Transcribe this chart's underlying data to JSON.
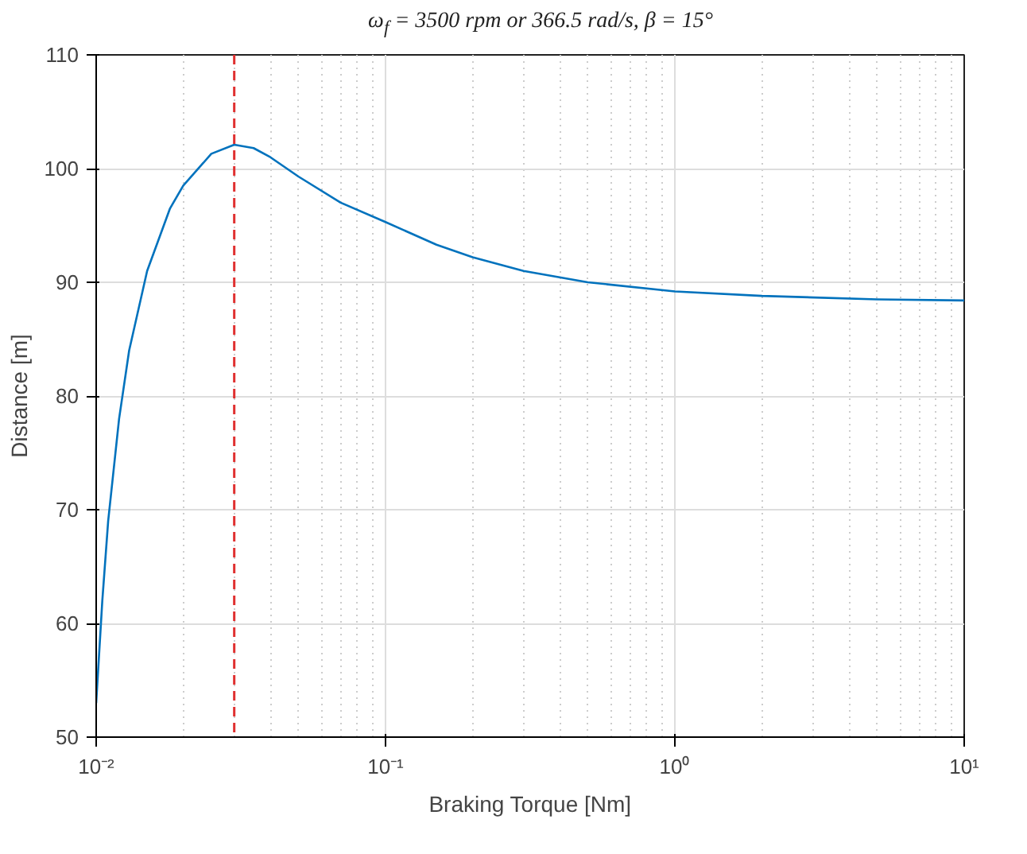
{
  "chart_data": {
    "type": "line",
    "title": "ω$_{f}$ = 3500 rpm or 366.5 rad/s, β = 15°",
    "xlabel": "Braking Torque [Nm]",
    "ylabel": "Distance [m]",
    "log": "x",
    "grid": true,
    "line_style": "solid",
    "xlim": [
      0.01,
      10
    ],
    "ylim": [
      50,
      110
    ],
    "xticks": [
      {
        "value": 0.01,
        "label": "10⁻²"
      },
      {
        "value": 0.1,
        "label": "10⁻¹"
      },
      {
        "value": 1,
        "label": "10⁰"
      },
      {
        "value": 10,
        "label": "10¹"
      }
    ],
    "yticks": [
      50,
      60,
      70,
      80,
      90,
      100,
      110
    ],
    "series": [
      {
        "color": "#0072bd",
        "x": [
          0.01,
          0.0105,
          0.011,
          0.012,
          0.013,
          0.015,
          0.018,
          0.02,
          0.025,
          0.03,
          0.035,
          0.04,
          0.05,
          0.07,
          0.1,
          0.15,
          0.2,
          0.3,
          0.5,
          1,
          2,
          5,
          10
        ],
        "values": [
          53,
          62,
          69,
          78,
          84,
          91,
          96.5,
          98.5,
          101.3,
          102.1,
          101.8,
          101,
          99.3,
          97,
          95.3,
          93.3,
          92.2,
          91,
          90,
          89.2,
          88.8,
          88.5,
          88.4
        ]
      }
    ],
    "ref_lines": [
      {
        "axis": "x",
        "value": 0.03,
        "color": "#e03030",
        "line_style": "dashed"
      }
    ]
  }
}
